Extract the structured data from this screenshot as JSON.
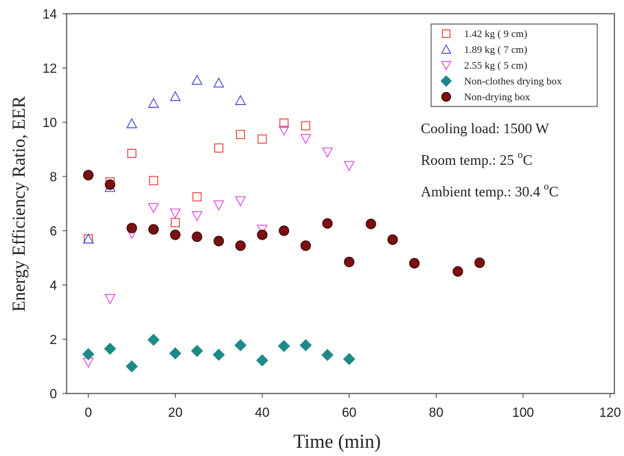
{
  "chart_data": {
    "type": "scatter",
    "x_label": "Time (min)",
    "y_label": "Energy Efficiency Ratio, EER",
    "xlim": [
      -5,
      121
    ],
    "ylim": [
      0,
      14
    ],
    "xticks": [
      0,
      20,
      40,
      60,
      80,
      100,
      120
    ],
    "yticks": [
      0,
      2,
      4,
      6,
      8,
      10,
      12,
      14
    ],
    "legend": "upper right",
    "series": [
      {
        "name": "1.42 kg ( 9 cm)",
        "color": "#e8302a",
        "marker": "square",
        "filled": false,
        "x": [
          0,
          5,
          10,
          15,
          20,
          25,
          30,
          35,
          40,
          45,
          50
        ],
        "values": [
          5.7,
          7.8,
          8.85,
          7.85,
          6.3,
          7.25,
          9.05,
          9.55,
          9.38,
          9.97,
          9.87
        ]
      },
      {
        "name": "1.89 kg ( 7 cm)",
        "color": "#3a3ad8",
        "marker": "triangle-up",
        "filled": false,
        "x": [
          0,
          5,
          10,
          15,
          20,
          25,
          30,
          35
        ],
        "values": [
          5.7,
          7.6,
          9.95,
          10.7,
          10.95,
          11.55,
          11.45,
          10.8
        ]
      },
      {
        "name": "2.55 kg ( 5 cm)",
        "color": "#e040e0",
        "marker": "triangle-down",
        "filled": false,
        "x": [
          0,
          5,
          10,
          15,
          20,
          25,
          30,
          35,
          40,
          45,
          50,
          55,
          60
        ],
        "values": [
          1.15,
          3.5,
          5.9,
          6.85,
          6.65,
          6.55,
          6.95,
          7.1,
          6.05,
          9.7,
          9.4,
          8.9,
          8.4
        ]
      },
      {
        "name": "Non-clothes drying box",
        "color": "#1e8a87",
        "marker": "diamond",
        "filled": true,
        "x": [
          0,
          5,
          10,
          15,
          20,
          25,
          30,
          35,
          40,
          45,
          50,
          55,
          60
        ],
        "values": [
          1.45,
          1.65,
          1.0,
          1.98,
          1.48,
          1.57,
          1.43,
          1.78,
          1.22,
          1.75,
          1.78,
          1.42,
          1.27
        ]
      },
      {
        "name": "Non-drying box",
        "color": "#7a1010",
        "marker": "circle",
        "filled": true,
        "x": [
          0,
          5,
          10,
          15,
          20,
          25,
          30,
          35,
          40,
          45,
          50,
          55,
          60,
          65,
          70,
          75,
          85,
          90
        ],
        "values": [
          8.05,
          7.7,
          6.1,
          6.05,
          5.85,
          5.78,
          5.62,
          5.45,
          5.85,
          6.0,
          5.45,
          6.27,
          4.85,
          6.25,
          5.67,
          4.8,
          4.5,
          4.82
        ]
      }
    ],
    "annotations": [
      [
        "Cooling load: 1500 W"
      ],
      [
        "Room temp.: 25 ",
        "o",
        "C"
      ],
      [
        "Ambient temp.: 30.4 ",
        "o",
        "C"
      ]
    ]
  }
}
